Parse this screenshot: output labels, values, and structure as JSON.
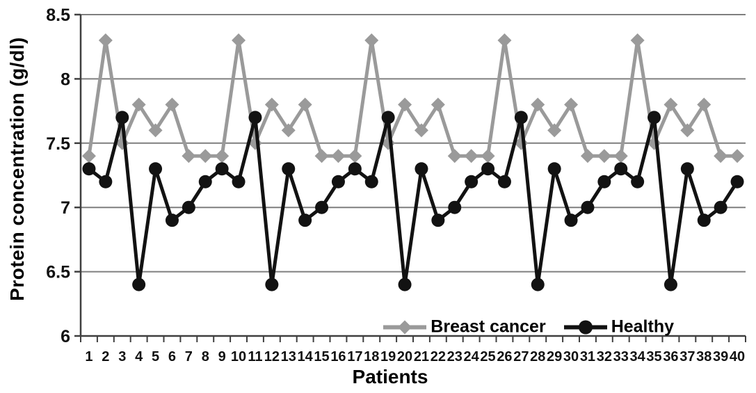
{
  "chart_data": {
    "type": "line",
    "title": "",
    "xlabel": "Patients",
    "ylabel": "Protein concentration (g/dl)",
    "x": [
      1,
      2,
      3,
      4,
      5,
      6,
      7,
      8,
      9,
      10,
      11,
      12,
      13,
      14,
      15,
      16,
      17,
      18,
      19,
      20,
      21,
      22,
      23,
      24,
      25,
      26,
      27,
      28,
      29,
      30,
      31,
      32,
      33,
      34,
      35,
      36,
      37,
      38,
      39,
      40
    ],
    "series": [
      {
        "name": "Breast cancer",
        "color": "#9a9a9a",
        "marker": "diamond",
        "values": [
          7.4,
          8.3,
          7.5,
          7.8,
          7.6,
          7.8,
          7.4,
          7.4,
          7.4,
          8.3,
          7.5,
          7.8,
          7.6,
          7.8,
          7.4,
          7.4,
          7.4,
          8.3,
          7.5,
          7.8,
          7.6,
          7.8,
          7.4,
          7.4,
          7.4,
          8.3,
          7.5,
          7.8,
          7.6,
          7.8,
          7.4,
          7.4,
          7.4,
          8.3,
          7.5,
          7.8,
          7.6,
          7.8,
          7.4,
          7.4
        ]
      },
      {
        "name": "Healthy",
        "color": "#121212",
        "marker": "circle",
        "values": [
          7.3,
          7.2,
          7.7,
          6.4,
          7.3,
          6.9,
          7.0,
          7.2,
          7.3,
          7.2,
          7.7,
          6.4,
          7.3,
          6.9,
          7.0,
          7.2,
          7.3,
          7.2,
          7.7,
          6.4,
          7.3,
          6.9,
          7.0,
          7.2,
          7.3,
          7.2,
          7.7,
          6.4,
          7.3,
          6.9,
          7.0,
          7.2,
          7.3,
          7.2,
          7.7,
          6.4,
          7.3,
          6.9,
          7.0,
          7.2
        ]
      }
    ],
    "ylim": [
      6,
      8.5
    ],
    "yticks": [
      6,
      6.5,
      7,
      7.5,
      8,
      8.5
    ],
    "ytick_labels": [
      "6",
      "6.5",
      "7",
      "7.5",
      "8",
      "8.5"
    ],
    "grid": true,
    "legend_position": "inside-bottom"
  },
  "colors": {
    "gridline": "#7f7f7f",
    "axis": "#3f3f3f",
    "tick_text": "#111111",
    "breast_cancer": "#9a9a9a",
    "healthy": "#121212"
  }
}
